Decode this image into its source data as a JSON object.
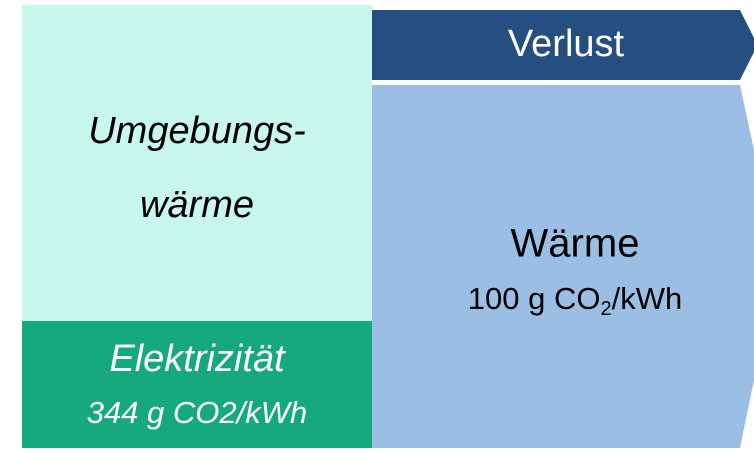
{
  "nodes": [
    {
      "label_lines": [
        "Umgebungs-",
        "wärme"
      ]
    },
    {
      "label": "Elektrizität",
      "sublabel": "344 g CO2/kWh"
    },
    {
      "label": "Verlust"
    },
    {
      "label": "Wärme",
      "sublabel_parts": [
        "100 g CO",
        "2",
        "/kWh"
      ]
    }
  ]
}
